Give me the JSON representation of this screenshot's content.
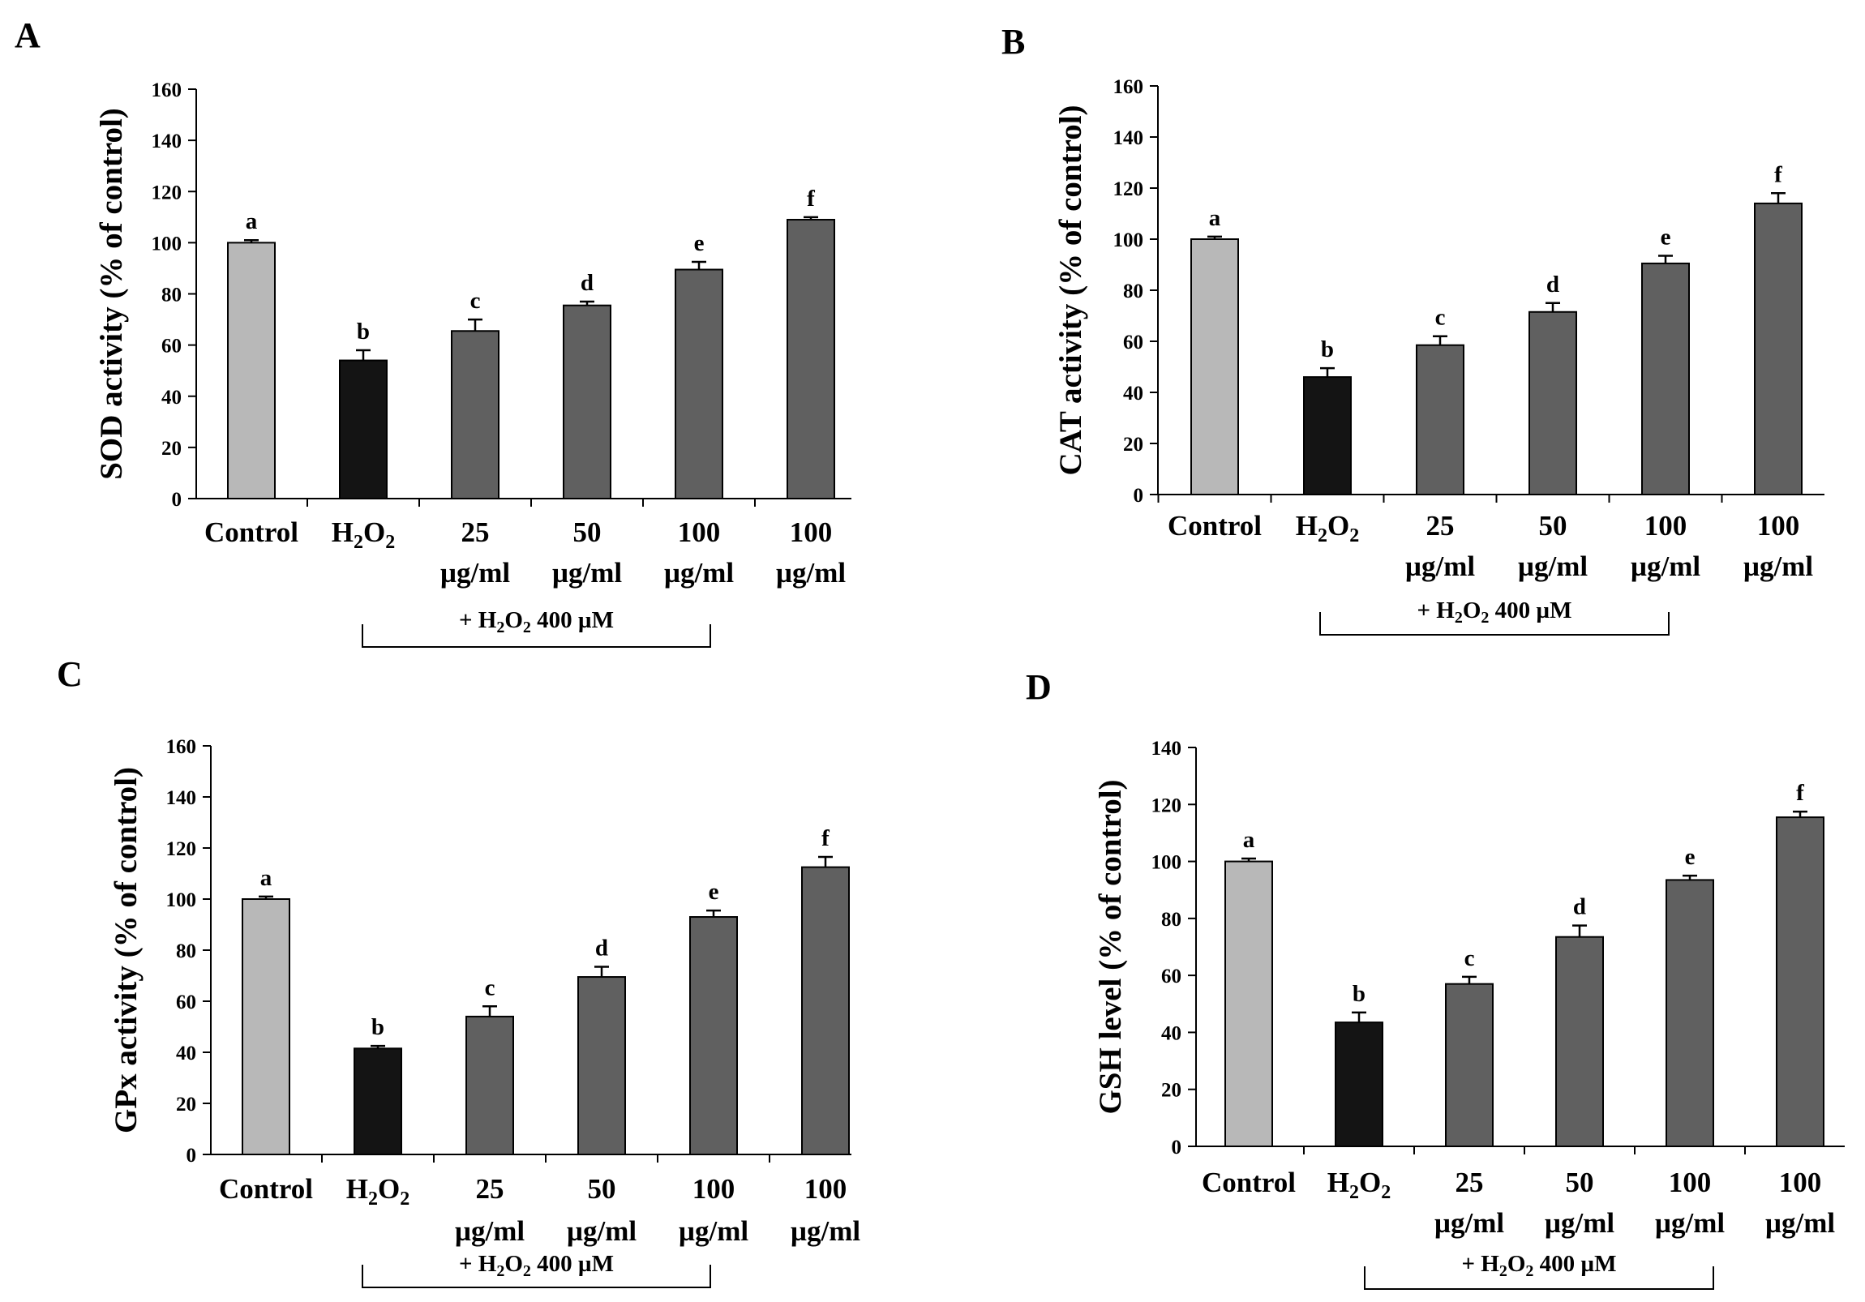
{
  "colors": {
    "control": "#b8b8b8",
    "h2o2": "#141414",
    "treatment": "#606060",
    "axis": "#000000"
  },
  "chart_data": [
    {
      "panel": "A",
      "type": "bar",
      "ylabel": "SOD activity (% of control)",
      "ylim": [
        0,
        160
      ],
      "yticks": [
        0,
        20,
        40,
        60,
        80,
        100,
        120,
        140,
        160
      ],
      "categories": [
        [
          "Control"
        ],
        [
          "H",
          "2",
          "O",
          "2"
        ],
        [
          "25",
          "µg/ml"
        ],
        [
          "50",
          "µg/ml"
        ],
        [
          "100",
          "µg/ml"
        ],
        [
          "100",
          "µg/ml"
        ]
      ],
      "values": [
        100,
        54,
        65.5,
        75.5,
        89.5,
        109
      ],
      "errors": [
        1,
        4,
        4.5,
        1.5,
        3,
        1
      ],
      "letters": [
        "a",
        "b",
        "c",
        "d",
        "e",
        "f"
      ],
      "bracket": {
        "text_pre": "+ H",
        "sub1": "2",
        "mid": "O",
        "sub2": "2",
        "post": " 400 µM"
      }
    },
    {
      "panel": "B",
      "type": "bar",
      "ylabel": "CAT activity (% of control)",
      "ylim": [
        0,
        160
      ],
      "yticks": [
        0,
        20,
        40,
        60,
        80,
        100,
        120,
        140,
        160
      ],
      "categories": [
        [
          "Control"
        ],
        [
          "H",
          "2",
          "O",
          "2"
        ],
        [
          "25",
          "µg/ml"
        ],
        [
          "50",
          "µg/ml"
        ],
        [
          "100",
          "µg/ml"
        ],
        [
          "100",
          "µg/ml"
        ]
      ],
      "values": [
        100,
        46,
        58.5,
        71.5,
        90.5,
        114
      ],
      "errors": [
        1,
        3.5,
        3.5,
        3.5,
        3,
        4
      ],
      "letters": [
        "a",
        "b",
        "c",
        "d",
        "e",
        "f"
      ],
      "bracket": {
        "text_pre": "+ H",
        "sub1": "2",
        "mid": "O",
        "sub2": "2",
        "post": " 400 µM"
      }
    },
    {
      "panel": "C",
      "type": "bar",
      "ylabel": "GPx activity (% of control)",
      "ylim": [
        0,
        160
      ],
      "yticks": [
        0,
        20,
        40,
        60,
        80,
        100,
        120,
        140,
        160
      ],
      "categories": [
        [
          "Control"
        ],
        [
          "H",
          "2",
          "O",
          "2"
        ],
        [
          "25",
          "µg/ml"
        ],
        [
          "50",
          "µg/ml"
        ],
        [
          "100",
          "µg/ml"
        ],
        [
          "100",
          "µg/ml"
        ]
      ],
      "values": [
        100,
        41.5,
        54,
        69.5,
        93,
        112.5
      ],
      "errors": [
        1,
        1,
        4,
        4,
        2.5,
        4
      ],
      "letters": [
        "a",
        "b",
        "c",
        "d",
        "e",
        "f"
      ],
      "bracket": {
        "text_pre": "+ H",
        "sub1": "2",
        "mid": "O",
        "sub2": "2",
        "post": " 400 µM"
      }
    },
    {
      "panel": "D",
      "type": "bar",
      "ylabel": "GSH level (% of control)",
      "ylim": [
        0,
        140
      ],
      "yticks": [
        0,
        20,
        40,
        60,
        80,
        100,
        120,
        140
      ],
      "categories": [
        [
          "Control"
        ],
        [
          "H",
          "2",
          "O",
          "2"
        ],
        [
          "25",
          "µg/ml"
        ],
        [
          "50",
          "µg/ml"
        ],
        [
          "100",
          "µg/ml"
        ],
        [
          "100",
          "µg/ml"
        ]
      ],
      "values": [
        100,
        43.5,
        57,
        73.5,
        93.5,
        115.5
      ],
      "errors": [
        1,
        3.5,
        2.5,
        4,
        1.5,
        2
      ],
      "letters": [
        "a",
        "b",
        "c",
        "d",
        "e",
        "f"
      ],
      "bracket": {
        "text_pre": "+ H",
        "sub1": "2",
        "mid": "O",
        "sub2": "2",
        "post": " 400 µM"
      }
    }
  ]
}
